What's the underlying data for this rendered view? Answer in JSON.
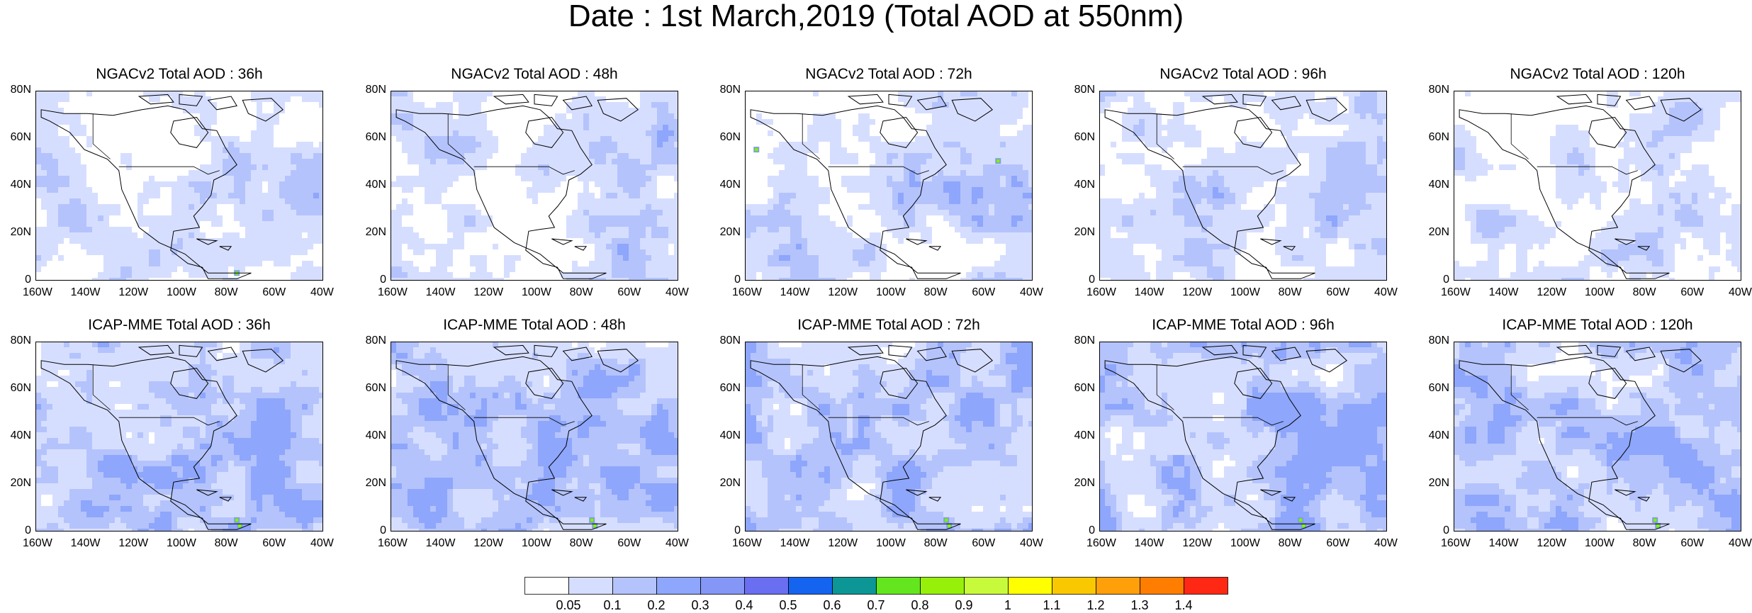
{
  "title": "Date : 1st March,2019 (Total AOD at 550nm)",
  "lat_labels": [
    "80N",
    "60N",
    "40N",
    "20N",
    "0"
  ],
  "lon_labels": [
    "160W",
    "140W",
    "120W",
    "100W",
    "80W",
    "60W",
    "40W"
  ],
  "panels": [
    {
      "title": "NGACv2 Total AOD : 36h",
      "model": "NGACv2",
      "lead": "36h"
    },
    {
      "title": "NGACv2 Total AOD : 48h",
      "model": "NGACv2",
      "lead": "48h"
    },
    {
      "title": "NGACv2 Total AOD : 72h",
      "model": "NGACv2",
      "lead": "72h"
    },
    {
      "title": "NGACv2 Total AOD : 96h",
      "model": "NGACv2",
      "lead": "96h"
    },
    {
      "title": "NGACv2 Total AOD : 120h",
      "model": "NGACv2",
      "lead": "120h"
    },
    {
      "title": "ICAP-MME Total AOD : 36h",
      "model": "ICAP-MME",
      "lead": "36h"
    },
    {
      "title": "ICAP-MME Total AOD : 48h",
      "model": "ICAP-MME",
      "lead": "48h"
    },
    {
      "title": "ICAP-MME Total AOD : 72h",
      "model": "ICAP-MME",
      "lead": "72h"
    },
    {
      "title": "ICAP-MME Total AOD : 96h",
      "model": "ICAP-MME",
      "lead": "96h"
    },
    {
      "title": "ICAP-MME Total AOD : 120h",
      "model": "ICAP-MME",
      "lead": "120h"
    }
  ],
  "colorbar": {
    "labels": [
      "0.05",
      "0.1",
      "0.2",
      "0.3",
      "0.4",
      "0.5",
      "0.6",
      "0.7",
      "0.8",
      "0.9",
      "1",
      "1.1",
      "1.2",
      "1.3",
      "1.4"
    ],
    "colors": [
      "#ffffff",
      "#d6deff",
      "#b4c3fc",
      "#8ea6fb",
      "#8496f6",
      "#6a6ef0",
      "#1464f0",
      "#0c9696",
      "#64e61e",
      "#96f00a",
      "#c8fa3c",
      "#ffff00",
      "#fac800",
      "#ffa00a",
      "#ff7d00",
      "#ff2814"
    ]
  }
}
